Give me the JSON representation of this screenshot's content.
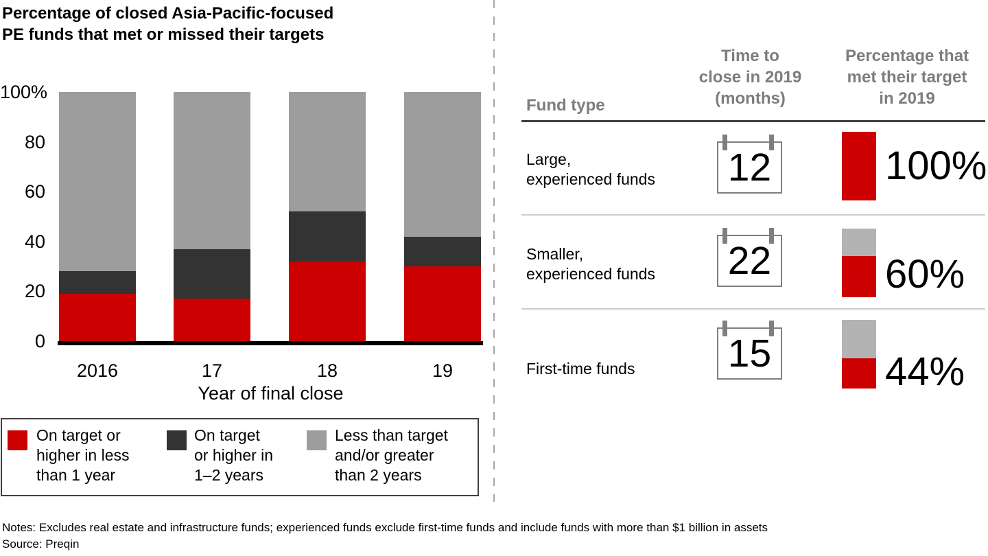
{
  "title": "Percentage of closed Asia-Pacific-focused\nPE funds that met or missed their targets",
  "chart_data": {
    "type": "bar",
    "stacked": true,
    "categories": [
      "2016",
      "17",
      "18",
      "19"
    ],
    "series": [
      {
        "name": "On target or higher in less than 1 year",
        "legend_label": "On target or\nhigher in less\nthan 1 year",
        "color": "#cc0000",
        "values": [
          19,
          17,
          32,
          30
        ]
      },
      {
        "name": "On target or higher in 1–2 years",
        "legend_label": "On target\nor higher in\n1–2 years",
        "color": "#333333",
        "values": [
          9,
          20,
          20,
          12
        ]
      },
      {
        "name": "Less than target and/or greater than 2 years",
        "legend_label": "Less than target\nand/or greater\nthan 2 years",
        "color": "#9d9d9d",
        "values": [
          72,
          63,
          48,
          58
        ]
      }
    ],
    "xlabel": "Year of final close",
    "ylabel": "",
    "ylim": [
      0,
      100
    ],
    "yticks": [
      0,
      20,
      40,
      60,
      80,
      100
    ],
    "ytick_labels": [
      "0",
      "20",
      "40",
      "60",
      "80",
      "100%"
    ],
    "legend_position": "bottom",
    "grid": false
  },
  "table": {
    "col_headers": {
      "fund_type": "Fund type",
      "time_to_close": "Time to\nclose in 2019\n(months)",
      "percentage_met": "Percentage that\nmet their target\nin 2019"
    },
    "rows": [
      {
        "fund_type": "Large,\nexperienced funds",
        "months": "12",
        "met_percent": 100,
        "met_label": "100%"
      },
      {
        "fund_type": "Smaller,\nexperienced funds",
        "months": "22",
        "met_percent": 60,
        "met_label": "60%"
      },
      {
        "fund_type": "First-time funds",
        "months": "15",
        "met_percent": 44,
        "met_label": "44%"
      }
    ],
    "met_color": "#cc0000",
    "missed_color": "#b3b3b3"
  },
  "notes": "Notes: Excludes real estate and infrastructure funds; experienced funds exclude first-time funds and include funds with more than $1 billion in assets",
  "source": "Source: Preqin"
}
